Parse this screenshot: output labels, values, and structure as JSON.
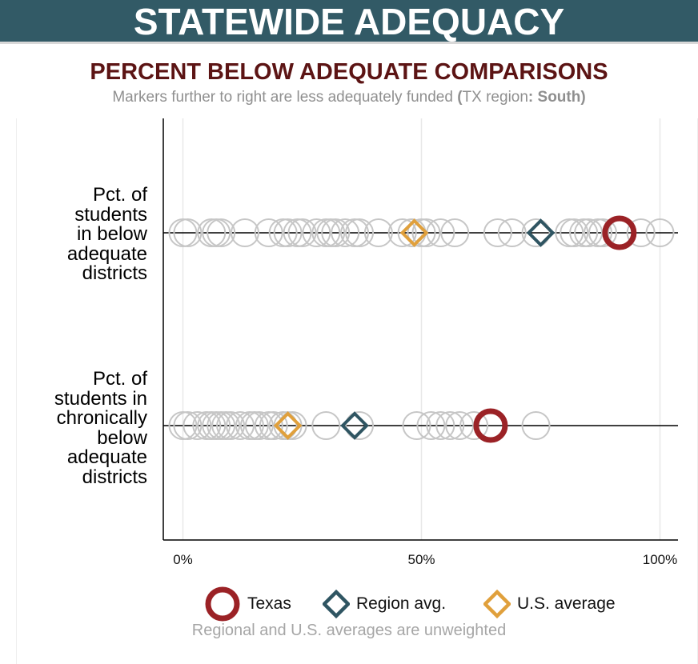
{
  "banner": {
    "title": "STATEWIDE ADEQUACY"
  },
  "header": {
    "title": "PERCENT BELOW ADEQUATE COMPARISONS",
    "subtitle_pre": "Markers further to right are less adequately funded ",
    "subtitle_paren_open": "(",
    "subtitle_mid": "TX region",
    "subtitle_colon": ": ",
    "subtitle_region": "South",
    "subtitle_paren_close": ")"
  },
  "chart_data": {
    "type": "scatter",
    "title": "PERCENT BELOW ADEQUATE COMPARISONS",
    "xlabel": "",
    "xlim": [
      -4,
      104
    ],
    "x_ticks": [
      0,
      50,
      100
    ],
    "x_tick_labels": [
      "0%",
      "50%",
      "100%"
    ],
    "grid": true,
    "legend_position": "bottom",
    "rows": [
      {
        "label": "Pct. of students in below adequate districts",
        "label_lines": [
          "Pct. of",
          "students",
          "in below",
          "adequate",
          "districts"
        ],
        "states": [
          0,
          1,
          6,
          7,
          8,
          13,
          18,
          21,
          22,
          24,
          25,
          28,
          30,
          31,
          32,
          34,
          36,
          37,
          41,
          46,
          48,
          50,
          51,
          54,
          57,
          66,
          69,
          74,
          81,
          82,
          84,
          85,
          87,
          88,
          92,
          96,
          100
        ],
        "texas": 91.5,
        "region_avg": 75,
        "us_average": 48.5
      },
      {
        "label": "Pct. of students in chronically below adequate districts",
        "label_lines": [
          "Pct. of",
          "students in",
          "chronically",
          "below",
          "adequate",
          "districts"
        ],
        "states": [
          0,
          1,
          3,
          5,
          6,
          7,
          8,
          9,
          10,
          12,
          14,
          15,
          16,
          18,
          19,
          21,
          22,
          23,
          30,
          37,
          49,
          52,
          54,
          56,
          58,
          61,
          74
        ],
        "texas": 64.5,
        "region_avg": 36,
        "us_average": 22
      }
    ],
    "legend": [
      {
        "name": "Texas",
        "marker": "circle",
        "color": "#9b2226"
      },
      {
        "name": "Region avg.",
        "marker": "diamond",
        "color": "#2f5562"
      },
      {
        "name": "U.S. average",
        "marker": "diamond",
        "color": "#e0a03c"
      }
    ],
    "state_marker_color": "#c6c6c6"
  },
  "note": "Regional and U.S. averages are unweighted"
}
